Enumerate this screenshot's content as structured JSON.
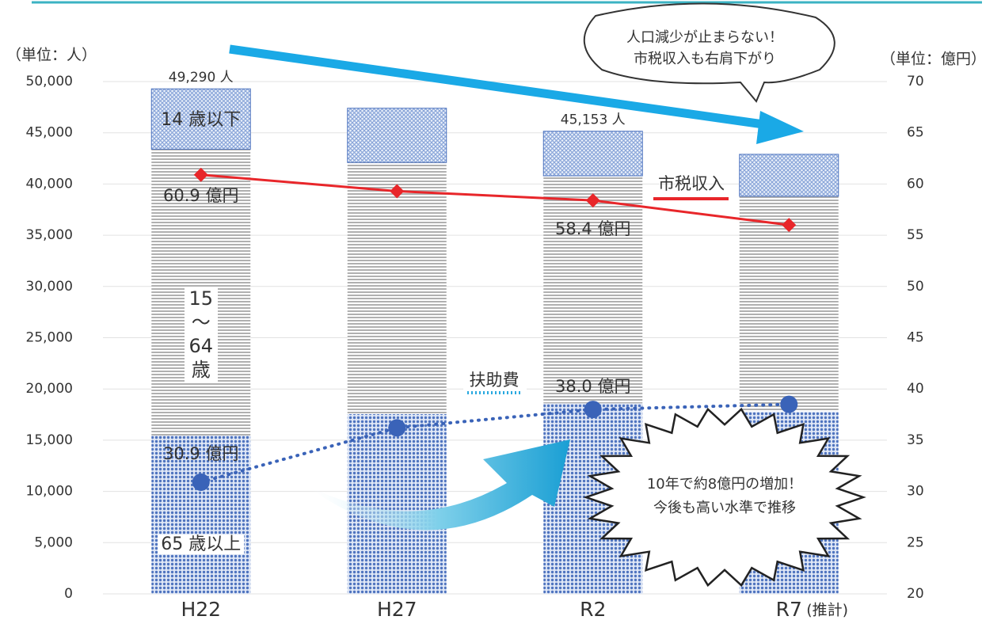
{
  "chart_data": {
    "type": "bar",
    "categories": [
      "H22",
      "H27",
      "R2",
      "R7"
    ],
    "category_note": "(推計)",
    "y_unit_label": "（単位：人）",
    "y2_unit_label": "（単位：億円）",
    "ylim": [
      0,
      50000
    ],
    "yticks": [
      {
        "value": 0,
        "label": "0"
      },
      {
        "value": 5000,
        "label": "5,000"
      },
      {
        "value": 10000,
        "label": "10,000"
      },
      {
        "value": 15000,
        "label": "15,000"
      },
      {
        "value": 20000,
        "label": "20,000"
      },
      {
        "value": 25000,
        "label": "25,000"
      },
      {
        "value": 30000,
        "label": "30,000"
      },
      {
        "value": 35000,
        "label": "35,000"
      },
      {
        "value": 40000,
        "label": "40,000"
      },
      {
        "value": 45000,
        "label": "45,000"
      },
      {
        "value": 50000,
        "label": "50,000"
      }
    ],
    "y2lim": [
      20,
      70
    ],
    "y2ticks": [
      20,
      25,
      30,
      35,
      40,
      45,
      50,
      55,
      60,
      65,
      70
    ],
    "series": [
      {
        "name": "65 歳以上",
        "color": "#4f74bf",
        "values": [
          15460,
          17550,
          18600,
          17800
        ]
      },
      {
        "name": "15 ～ 64 歳",
        "color": "#b0b0b0",
        "values": [
          27940,
          24550,
          22200,
          21000
        ]
      },
      {
        "name": "14 歳以下",
        "color": "#8aa6d9",
        "values": [
          5890,
          5300,
          4353,
          4100
        ]
      },
      {
        "name": "市税収入",
        "color": "#e8262a",
        "axis": "y2",
        "type": "line",
        "values": [
          60.9,
          59.3,
          58.4,
          56.0
        ],
        "value_labels": [
          "60.9 億円",
          null,
          "58.4 億円",
          null
        ]
      },
      {
        "name": "扶助費",
        "color": "#3a63b8",
        "axis": "y2",
        "type": "line",
        "dotted": true,
        "values": [
          30.9,
          36.2,
          38.0,
          38.5
        ],
        "value_labels": [
          "30.9 億円",
          null,
          "38.0 億円",
          null
        ]
      }
    ],
    "totals": [
      49290,
      null,
      45153,
      null
    ],
    "total_labels": [
      "49,290 人",
      null,
      "45,153 人",
      null
    ],
    "annotations": [
      {
        "lines": [
          "人口減少が止まらない！",
          "市税収入も右肩下がり"
        ]
      },
      {
        "lines": [
          "10年で約8億円の増加！",
          "今後も高い水準で推移"
        ]
      }
    ]
  }
}
